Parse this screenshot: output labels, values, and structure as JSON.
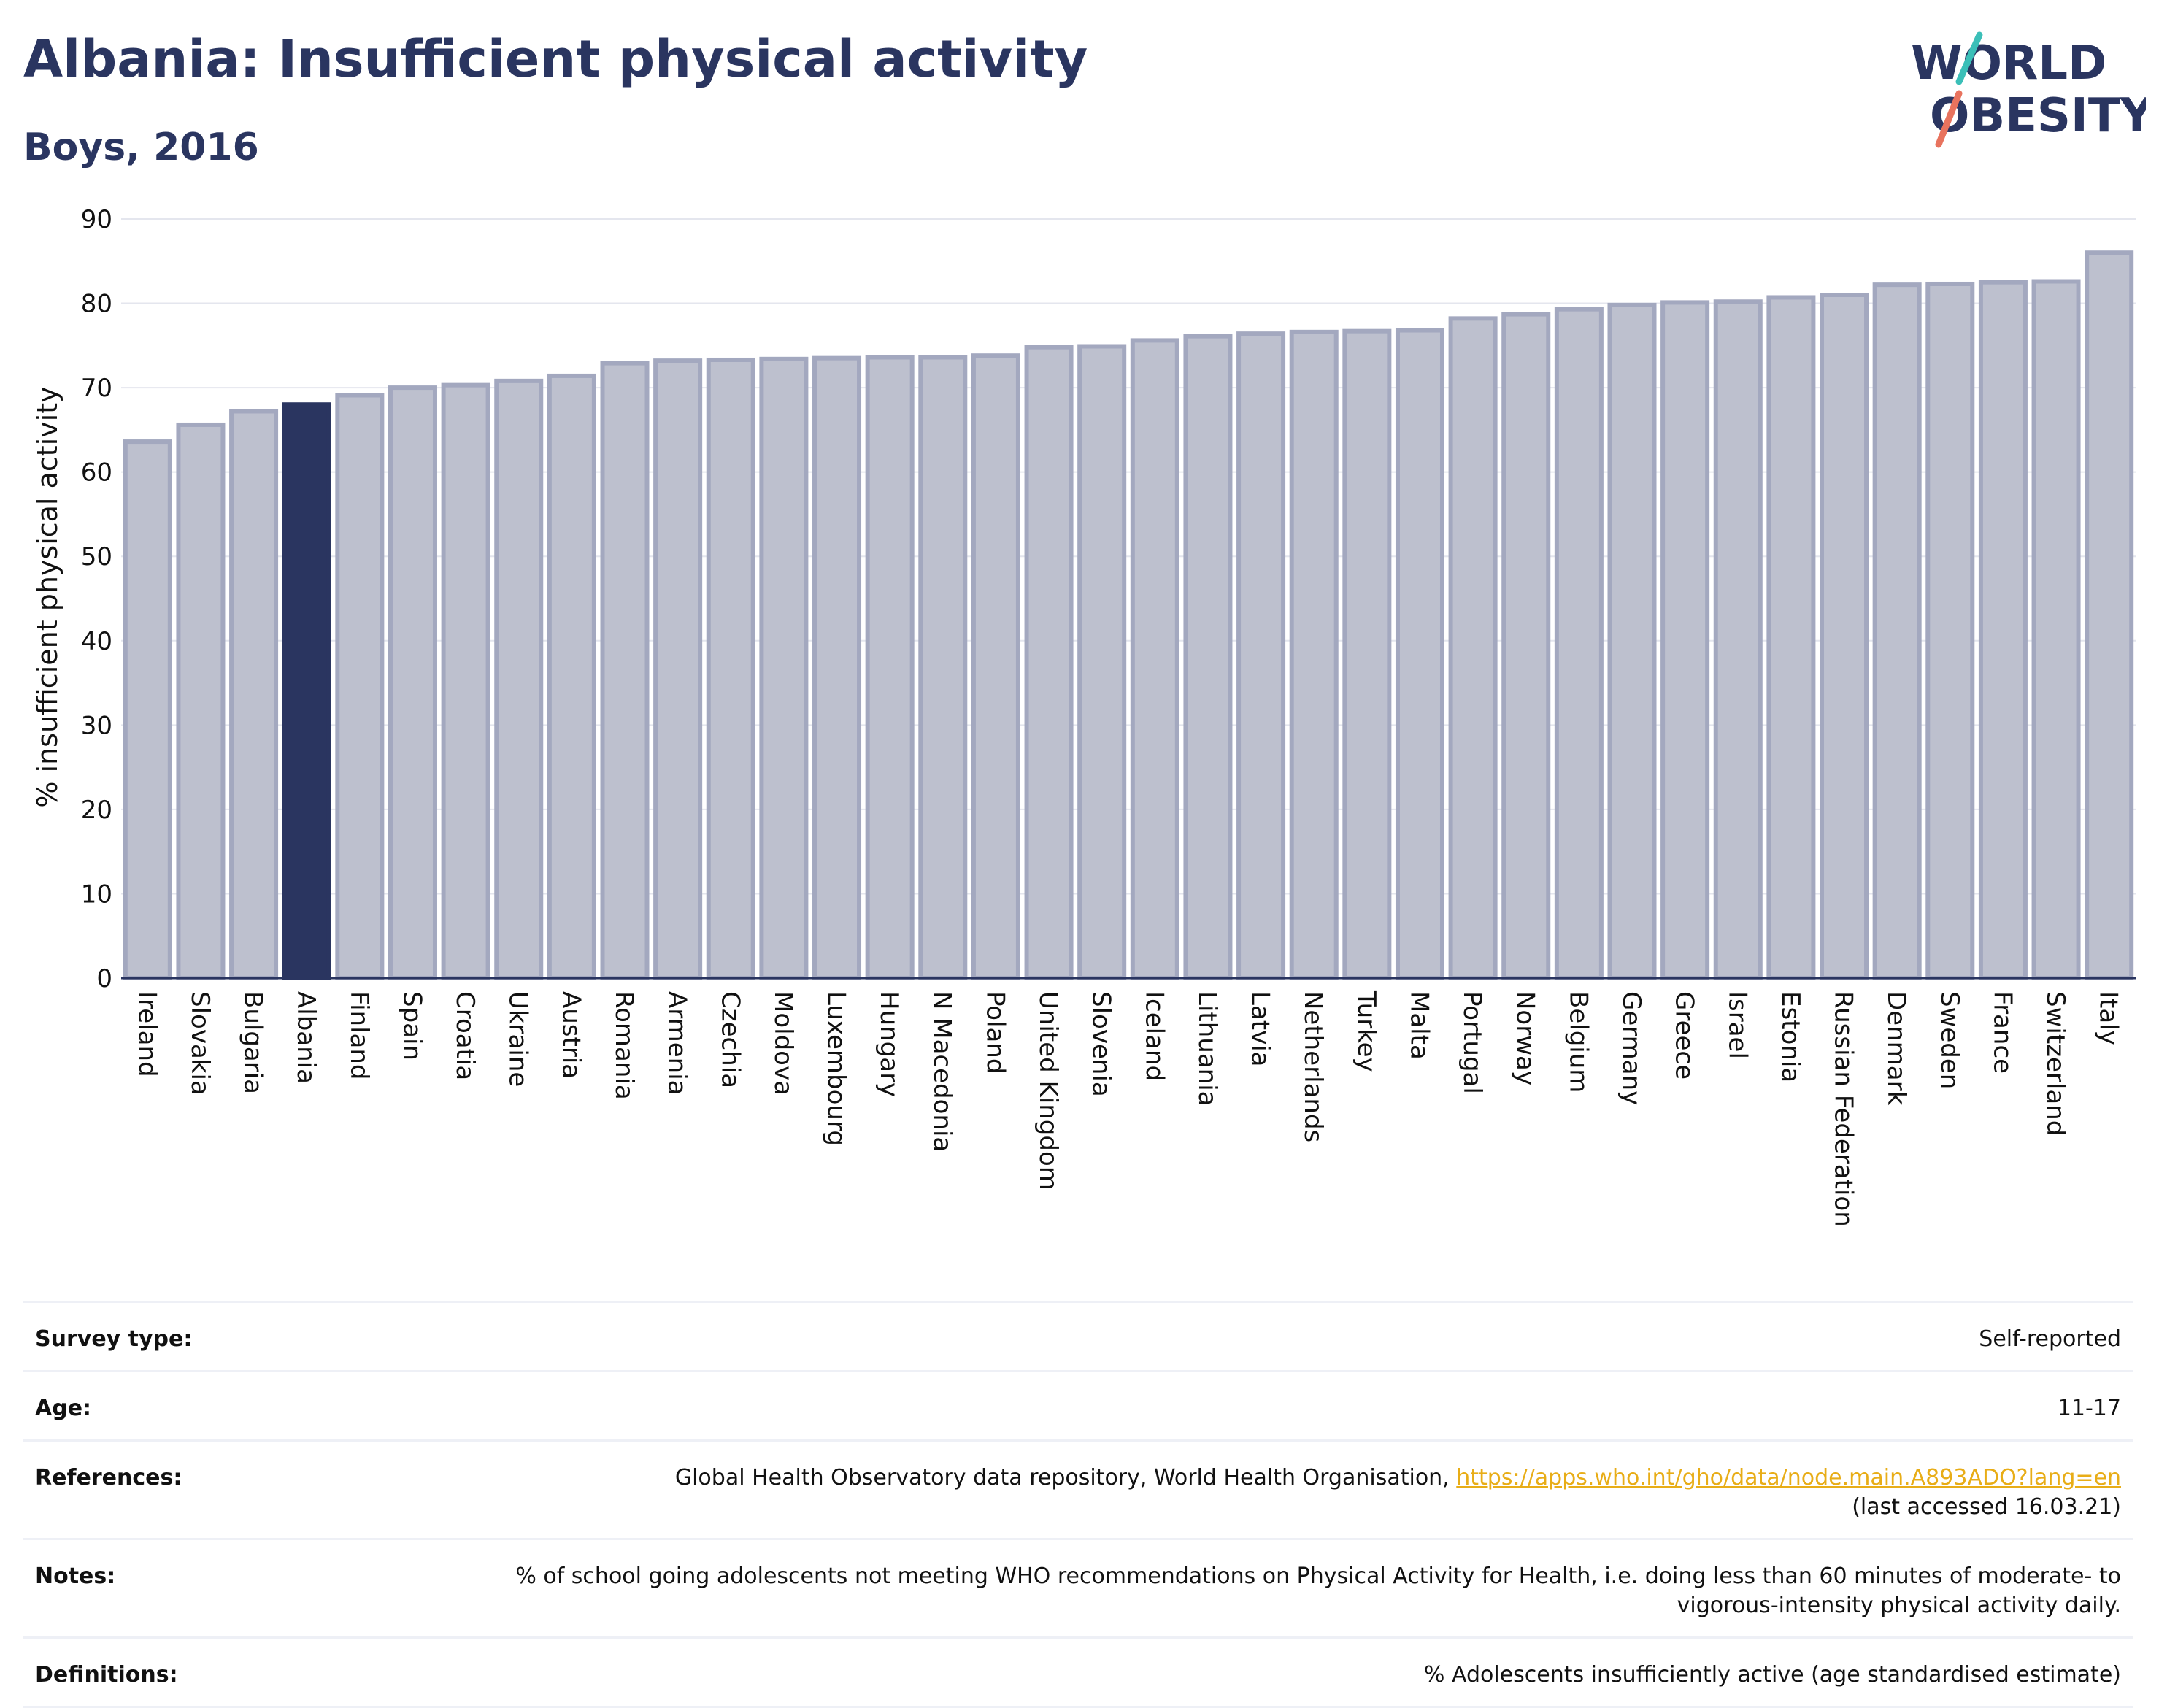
{
  "header": {
    "title": "Albania: Insufficient physical activity",
    "subtitle": "Boys, 2016"
  },
  "logo": {
    "line1": "WORLD",
    "line2": "OBESITY"
  },
  "chart_data": {
    "type": "bar",
    "ylabel": "% insufficient physical activity",
    "xlabel": "",
    "ylim": [
      0,
      90
    ],
    "yticks": [
      0,
      10,
      20,
      30,
      40,
      50,
      60,
      70,
      80,
      90
    ],
    "grid": true,
    "highlight": "Albania",
    "colors": {
      "bar": "#bdc0ce",
      "bar_edge": "#a3a8bf",
      "highlight": "#2a3560",
      "grid": "#e4e6ee",
      "axis": "#2a3560"
    },
    "categories": [
      "Ireland",
      "Slovakia",
      "Bulgaria",
      "Albania",
      "Finland",
      "Spain",
      "Croatia",
      "Ukraine",
      "Austria",
      "Romania",
      "Armenia",
      "Czechia",
      "Moldova",
      "Luxembourg",
      "Hungary",
      "N Macedonia",
      "Poland",
      "United Kingdom",
      "Slovenia",
      "Iceland",
      "Lithuania",
      "Latvia",
      "Netherlands",
      "Turkey",
      "Malta",
      "Portugal",
      "Norway",
      "Belgium",
      "Germany",
      "Greece",
      "Israel",
      "Estonia",
      "Russian Federation",
      "Denmark",
      "Sweden",
      "France",
      "Switzerland",
      "Italy"
    ],
    "values": [
      63.6,
      65.6,
      67.2,
      68.0,
      69.1,
      70.0,
      70.3,
      70.8,
      71.4,
      72.9,
      73.2,
      73.3,
      73.4,
      73.5,
      73.6,
      73.6,
      73.8,
      74.8,
      74.9,
      75.6,
      76.1,
      76.4,
      76.6,
      76.7,
      76.8,
      78.2,
      78.7,
      79.3,
      79.8,
      80.1,
      80.2,
      80.7,
      81.0,
      82.2,
      82.3,
      82.5,
      82.6,
      86.0
    ]
  },
  "table": {
    "rows": [
      {
        "key": "Survey type:",
        "value": "Self-reported"
      },
      {
        "key": "Age:",
        "value": "11-17"
      },
      {
        "key": "References:",
        "value": "Global Health Observatory data repository, World Health Organisation, ",
        "link": "https://apps.who.int/gho/data/node.main.A893ADO?lang=en",
        "value2": "(last accessed 16.03.21)"
      },
      {
        "key": "Notes:",
        "value": "% of school going adolescents not meeting WHO recommendations on Physical Activity for Health, i.e. doing less than 60 minutes of moderate- to vigorous-intensity physical activity daily."
      },
      {
        "key": "Definitions:",
        "value": "% Adolescents insufficiently active (age standardised estimate)"
      }
    ]
  }
}
